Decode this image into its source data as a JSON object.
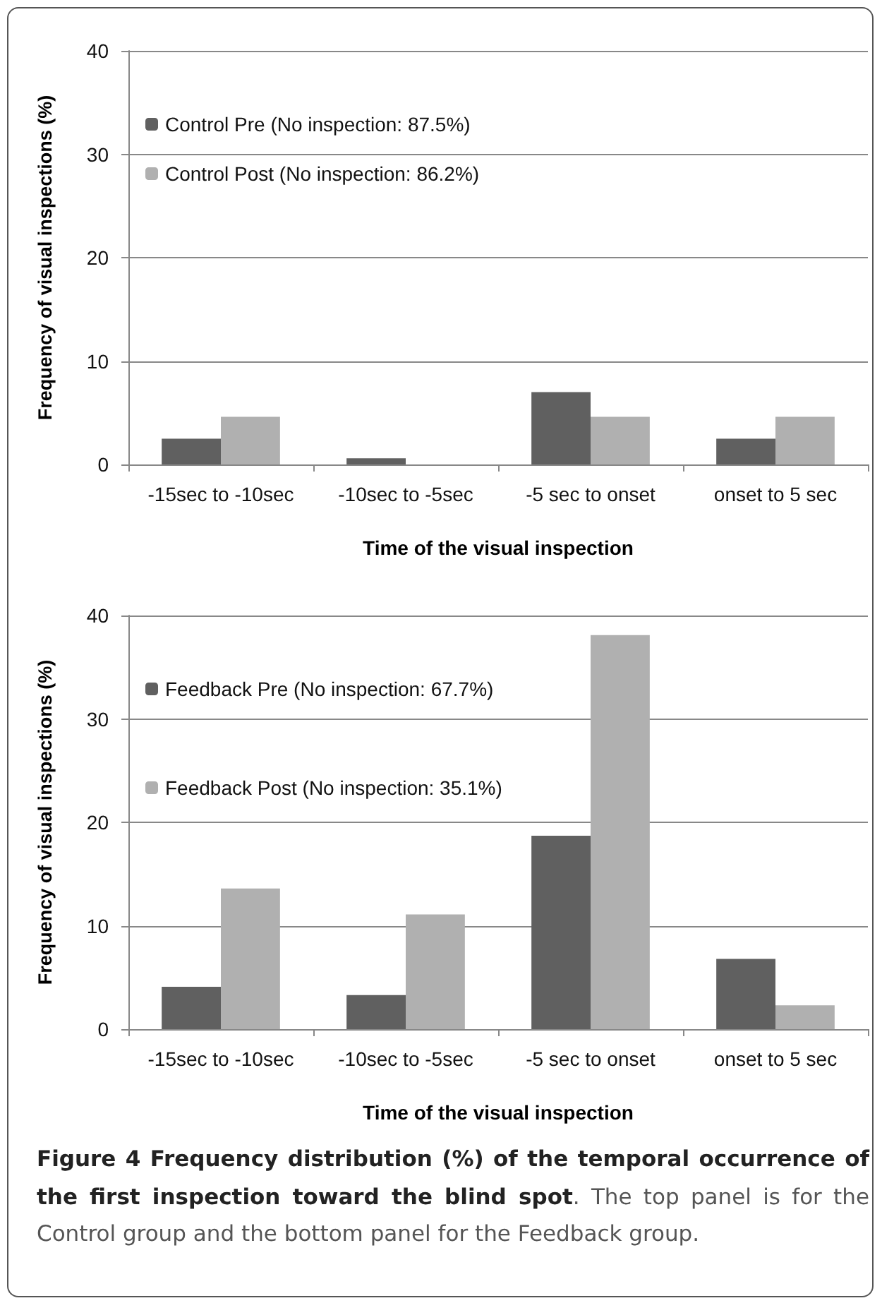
{
  "chart_data": [
    {
      "type": "bar",
      "xlabel": "Time of the visual inspection",
      "ylabel": "Frequency of visual inspections (%)",
      "categories": [
        "-15sec to -10sec",
        "-10sec to -5sec",
        "-5 sec to onset",
        "onset to 5 sec"
      ],
      "series": [
        {
          "name": "Control Pre (No inspection: 87.5%)",
          "color": "#606060",
          "values": [
            2.5,
            0.6,
            7.0,
            2.5
          ]
        },
        {
          "name": "Control Post (No inspection: 86.2%)",
          "color": "#b0b0b0",
          "values": [
            4.6,
            0,
            4.6,
            4.6
          ]
        }
      ],
      "ylim": [
        0,
        40
      ],
      "yticks": [
        0,
        10,
        20,
        30,
        40
      ],
      "grid": "y",
      "legend": "top left"
    },
    {
      "type": "bar",
      "xlabel": "Time of the visual inspection",
      "ylabel": "Frequency of visual inspections (%)",
      "categories": [
        "-15sec to -10sec",
        "-10sec to -5sec",
        "-5 sec to onset",
        "onset to 5 sec"
      ],
      "series": [
        {
          "name": "Feedback Pre (No inspection: 67.7%)",
          "color": "#606060",
          "values": [
            4.1,
            3.3,
            18.7,
            6.8
          ]
        },
        {
          "name": "Feedback Post (No inspection: 35.1%)",
          "color": "#b0b0b0",
          "values": [
            13.6,
            11.1,
            38.1,
            2.3
          ]
        }
      ],
      "ylim": [
        0,
        40
      ],
      "yticks": [
        0,
        10,
        20,
        30,
        40
      ],
      "grid": "y",
      "legend": "top left",
      "annotations": [
        "Figure 4 Frequency distribution (%) of the temporal occurrence of the first inspection toward the blind spot",
        ". The top panel is for the Control group and the bottom panel for the Feedback group."
      ]
    }
  ]
}
